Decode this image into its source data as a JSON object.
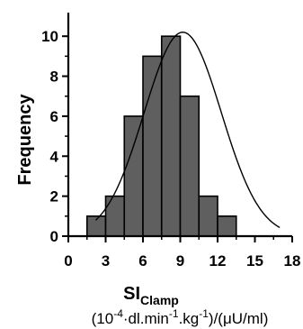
{
  "chart_data": {
    "type": "bar",
    "bin_edges": [
      0,
      1.5,
      3,
      4.5,
      6,
      7.5,
      9,
      10.5,
      12,
      13.5,
      15,
      16.5,
      18
    ],
    "values": [
      0,
      1,
      2,
      6,
      9,
      10,
      7,
      2,
      1,
      0,
      0,
      0
    ],
    "xlim": [
      0,
      18
    ],
    "ylim": [
      0,
      11
    ],
    "xticks": [
      0,
      3,
      6,
      9,
      12,
      15,
      18
    ],
    "yticks": [
      0,
      2,
      4,
      6,
      8,
      10
    ],
    "xlabel": "SI",
    "xlabel_subscript": "Clamp",
    "xunit": {
      "p1": "(10",
      "sup1": "-4",
      "p2": "·dl.min",
      "sup2": "-1",
      "p3": ".kg",
      "sup3": "-1",
      "p4": ")/(",
      "mu": "μ",
      "p5": "U/ml)"
    },
    "ylabel": "Frequency",
    "fit_curve": {
      "type": "normal",
      "mean": 9.2,
      "sd": 3.1,
      "peak": 10.2,
      "x_from": 2.2,
      "x_to": 17.0
    },
    "bar_color": "#5f5f5f",
    "edge_color": "#000000",
    "grid": false,
    "legend": "none"
  }
}
